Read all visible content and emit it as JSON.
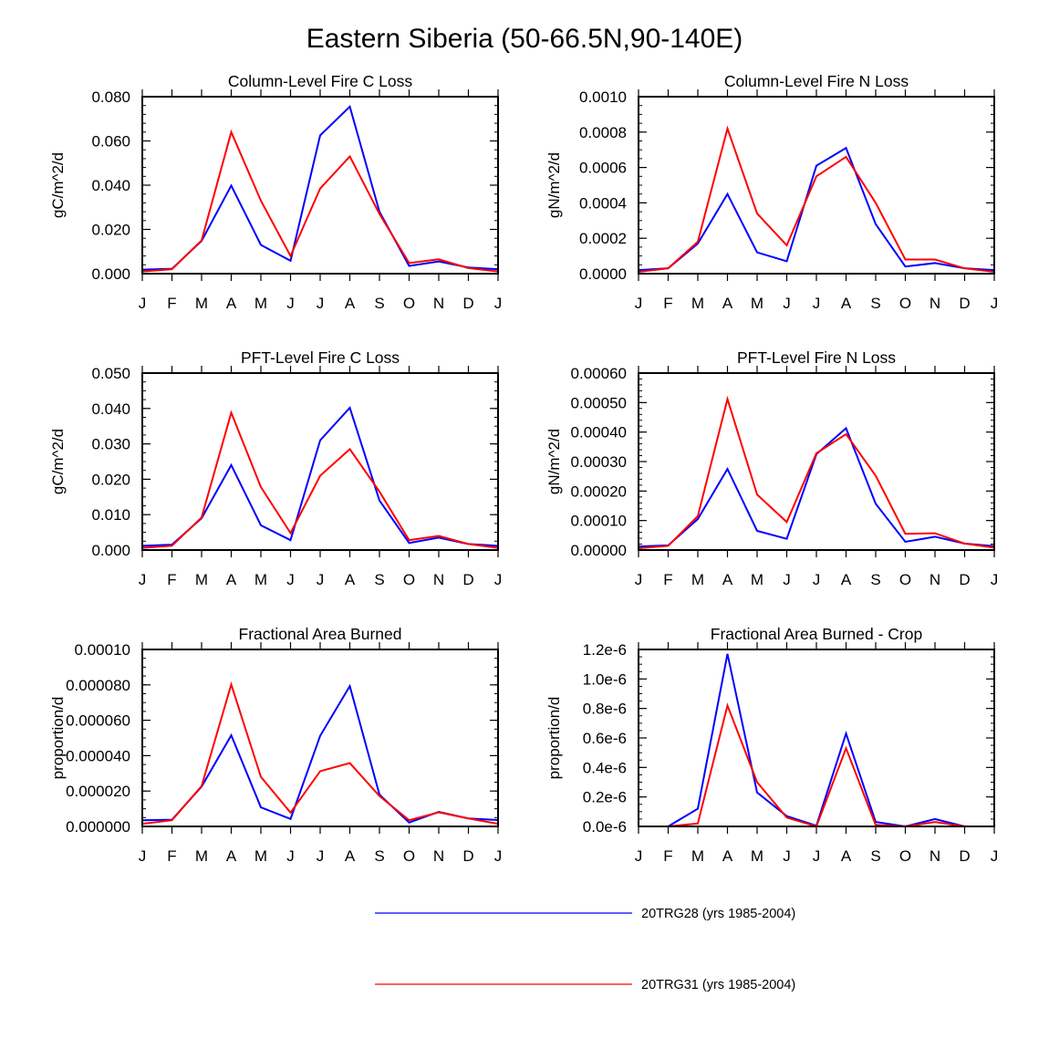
{
  "title": "Eastern Siberia (50-66.5N,90-140E)",
  "months": [
    "J",
    "F",
    "M",
    "A",
    "M",
    "J",
    "J",
    "A",
    "S",
    "O",
    "N",
    "D",
    "J"
  ],
  "legend": [
    {
      "name": "20TRG28 (yrs 1985-2004)",
      "color": "#0000ff"
    },
    {
      "name": "20TRG31 (yrs 1985-2004)",
      "color": "#ff0000"
    }
  ],
  "chart_data": [
    {
      "type": "line",
      "title": "Column-Level Fire C Loss",
      "ylabel": "gC/m^2/d",
      "ylim": [
        0,
        0.08
      ],
      "yticks": [
        0,
        0.02,
        0.04,
        0.06,
        0.08
      ],
      "ytick_labels": [
        "0.000",
        "0.020",
        "0.040",
        "0.060",
        "0.080"
      ],
      "yminor": 0.004,
      "series": [
        {
          "name": "20TRG28 (yrs 1985-2004)",
          "color": "#0000ff",
          "values": [
            0.0018,
            0.0022,
            0.0148,
            0.0398,
            0.013,
            0.0058,
            0.0625,
            0.0755,
            0.028,
            0.0035,
            0.0055,
            0.0028,
            0.002
          ]
        },
        {
          "name": "20TRG31 (yrs 1985-2004)",
          "color": "#ff0000",
          "values": [
            0.001,
            0.002,
            0.015,
            0.064,
            0.033,
            0.008,
            0.0385,
            0.053,
            0.027,
            0.0048,
            0.0065,
            0.0025,
            0.001
          ]
        }
      ]
    },
    {
      "type": "line",
      "title": "Column-Level Fire N Loss",
      "ylabel": "gN/m^2/d",
      "ylim": [
        0,
        0.001
      ],
      "yticks": [
        0,
        0.0002,
        0.0004,
        0.0006,
        0.0008,
        0.001
      ],
      "ytick_labels": [
        "0.0000",
        "0.0002",
        "0.0004",
        "0.0006",
        "0.0008",
        "0.0010"
      ],
      "yminor": 5e-05,
      "series": [
        {
          "name": "20TRG28 (yrs 1985-2004)",
          "color": "#0000ff",
          "values": [
            2e-05,
            3e-05,
            0.00017,
            0.00045,
            0.00012,
            7e-05,
            0.00061,
            0.00071,
            0.00028,
            4e-05,
            6e-05,
            3e-05,
            2e-05
          ]
        },
        {
          "name": "20TRG31 (yrs 1985-2004)",
          "color": "#ff0000",
          "values": [
            1e-05,
            3e-05,
            0.00018,
            0.00082,
            0.00034,
            0.00016,
            0.00055,
            0.00066,
            0.0004,
            8e-05,
            8e-05,
            3e-05,
            1e-05
          ]
        }
      ]
    },
    {
      "type": "line",
      "title": "PFT-Level Fire C Loss",
      "ylabel": "gC/m^2/d",
      "ylim": [
        0,
        0.05
      ],
      "yticks": [
        0,
        0.01,
        0.02,
        0.03,
        0.04,
        0.05
      ],
      "ytick_labels": [
        "0.000",
        "0.010",
        "0.020",
        "0.030",
        "0.040",
        "0.050"
      ],
      "yminor": 0.0025,
      "series": [
        {
          "name": "20TRG28 (yrs 1985-2004)",
          "color": "#0000ff",
          "values": [
            0.0012,
            0.0015,
            0.009,
            0.024,
            0.007,
            0.0028,
            0.031,
            0.0402,
            0.014,
            0.002,
            0.0035,
            0.0017,
            0.0012
          ]
        },
        {
          "name": "20TRG31 (yrs 1985-2004)",
          "color": "#ff0000",
          "values": [
            0.0006,
            0.0012,
            0.0092,
            0.0388,
            0.0178,
            0.0048,
            0.021,
            0.0285,
            0.0165,
            0.0028,
            0.004,
            0.0017,
            0.0006
          ]
        }
      ]
    },
    {
      "type": "line",
      "title": "PFT-Level Fire N Loss",
      "ylabel": "gN/m^2/d",
      "ylim": [
        0,
        0.0006
      ],
      "yticks": [
        0,
        0.0001,
        0.0002,
        0.0003,
        0.0004,
        0.0005,
        0.0006
      ],
      "ytick_labels": [
        "0.00000",
        "0.00010",
        "0.00020",
        "0.00030",
        "0.00040",
        "0.00050",
        "0.00060"
      ],
      "yminor": 2e-05,
      "series": [
        {
          "name": "20TRG28 (yrs 1985-2004)",
          "color": "#0000ff",
          "values": [
            1.2e-05,
            1.6e-05,
            0.000105,
            0.000275,
            6.5e-05,
            3.8e-05,
            0.000325,
            0.000413,
            0.000157,
            2.8e-05,
            4.5e-05,
            2.2e-05,
            1.3e-05
          ]
        },
        {
          "name": "20TRG31 (yrs 1985-2004)",
          "color": "#ff0000",
          "values": [
            6e-06,
            1.4e-05,
            0.000115,
            0.000512,
            0.000188,
            9.5e-05,
            0.000328,
            0.000393,
            0.000252,
            5.5e-05,
            5.7e-05,
            2.2e-05,
            8e-06
          ]
        }
      ]
    },
    {
      "type": "line",
      "title": "Fractional Area Burned",
      "ylabel": "proportion/d",
      "ylim": [
        0,
        0.0001
      ],
      "yticks": [
        0,
        2e-05,
        4e-05,
        6e-05,
        8e-05,
        0.0001
      ],
      "ytick_labels": [
        "0.000000",
        "0.000020",
        "0.000040",
        "0.000060",
        "0.000080",
        "0.00010"
      ],
      "yminor": 5e-06,
      "series": [
        {
          "name": "20TRG28 (yrs 1985-2004)",
          "color": "#0000ff",
          "values": [
            3.5e-06,
            3.8e-06,
            2.25e-05,
            5.15e-05,
            1.08e-05,
            4.2e-06,
            5.12e-05,
            7.93e-05,
            1.8e-05,
            2.2e-06,
            8.2e-06,
            4.5e-06,
            3.6e-06
          ]
        },
        {
          "name": "20TRG31 (yrs 1985-2004)",
          "color": "#ff0000",
          "values": [
            1.5e-06,
            3.5e-06,
            2.28e-05,
            8.02e-05,
            2.8e-05,
            7.8e-06,
            3.12e-05,
            3.58e-05,
            1.72e-05,
            3.5e-06,
            8e-06,
            4.5e-06,
            1.5e-06
          ]
        }
      ]
    },
    {
      "type": "line",
      "title": "Fractional Area Burned - Crop",
      "ylabel": "proportion/d",
      "ylim": [
        0,
        1.2e-06
      ],
      "yticks": [
        0,
        2e-07,
        4e-07,
        6e-07,
        8e-07,
        1e-06,
        1.2e-06
      ],
      "ytick_labels": [
        "0.0e-6",
        "0.2e-6",
        "0.4e-6",
        "0.6e-6",
        "0.8e-6",
        "1.0e-6",
        "1.2e-6"
      ],
      "yminor": 5e-08,
      "series": [
        {
          "name": "20TRG28 (yrs 1985-2004)",
          "color": "#0000ff",
          "values": [
            0,
            0,
            1.2e-07,
            1.17e-06,
            2.3e-07,
            7e-08,
            5e-09,
            6.3e-07,
            3e-08,
            0,
            5e-08,
            0,
            0
          ]
        },
        {
          "name": "20TRG31 (yrs 1985-2004)",
          "color": "#ff0000",
          "values": [
            0,
            0,
            2e-08,
            8.2e-07,
            3e-07,
            6e-08,
            0,
            5.3e-07,
            1e-08,
            0,
            3e-08,
            0,
            0
          ]
        }
      ]
    }
  ]
}
